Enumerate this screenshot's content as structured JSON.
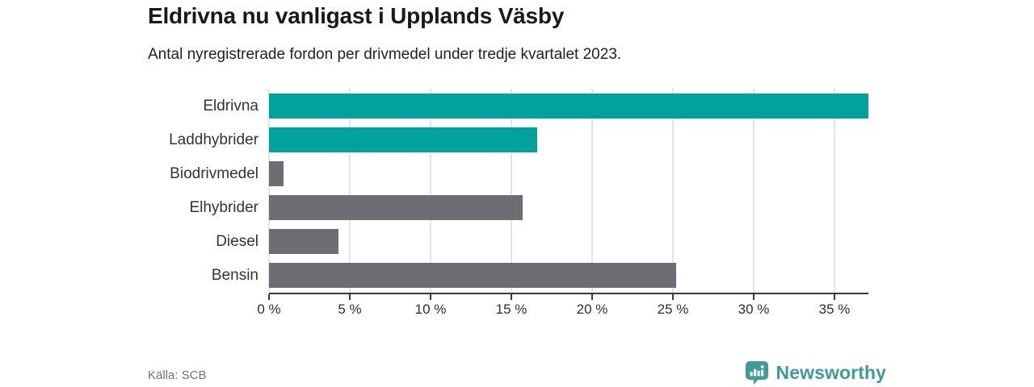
{
  "chart_data": {
    "type": "bar",
    "orientation": "horizontal",
    "title": "Eldrivna nu vanligast i Upplands Väsby",
    "subtitle": "Antal nyregistrerade fordon per drivmedel under tredje kvartalet 2023.",
    "categories": [
      "Eldrivna",
      "Laddhybrider",
      "Biodrivmedel",
      "Elhybrider",
      "Diesel",
      "Bensin"
    ],
    "values": [
      37.1,
      16.6,
      0.9,
      15.7,
      4.3,
      25.2
    ],
    "bar_colors": [
      "#00a39b",
      "#00a39b",
      "#6d6d74",
      "#6d6d74",
      "#6d6d74",
      "#6d6d74"
    ],
    "unit": "%",
    "xlabel": "",
    "ylabel": "",
    "xlim": [
      0,
      37.1
    ],
    "x_ticks": [
      0,
      5,
      10,
      15,
      20,
      25,
      30,
      35
    ],
    "x_tick_labels": [
      "0 %",
      "5 %",
      "10 %",
      "15 %",
      "20 %",
      "25 %",
      "30 %",
      "35 %"
    ],
    "grid": "vertical-gridlines-on",
    "legend": "none"
  },
  "footer": {
    "source": "Källa: SCB",
    "brand": "Newsworthy"
  },
  "colors": {
    "accent_teal": "#00a39b",
    "bar_gray": "#6d6d74",
    "brand_teal": "#3e9b95",
    "axis": "#3a3a3a",
    "grid": "#e4e4e4",
    "title_text": "#1a1a1a",
    "label_text": "#333333",
    "source_text": "#6e727c"
  }
}
